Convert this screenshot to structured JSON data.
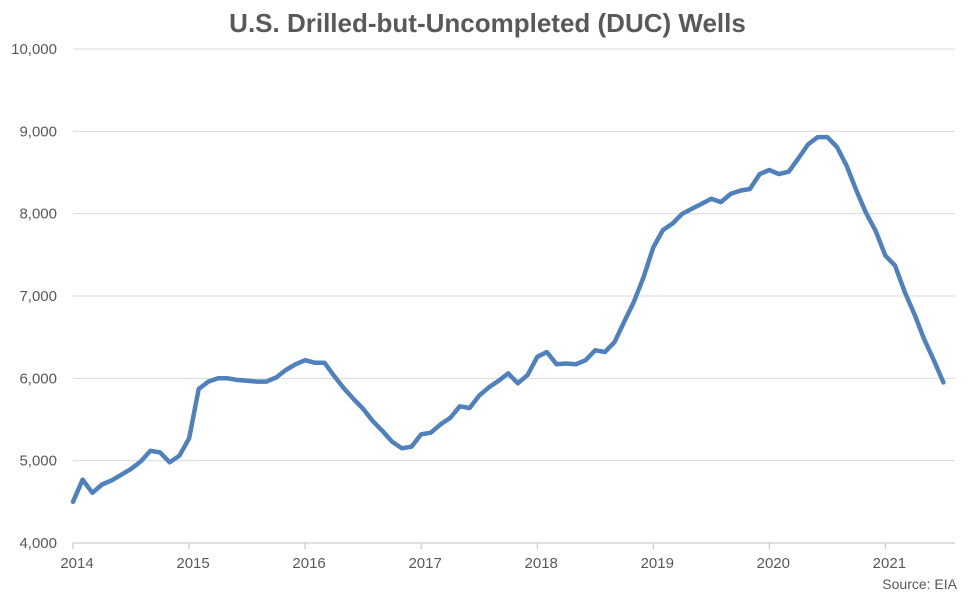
{
  "chart_data": {
    "type": "line",
    "title": "U.S. Drilled-but-Uncompleted (DUC) Wells",
    "source": "Source: EIA",
    "xlabel": "",
    "ylabel": "",
    "x_ticks": [
      "2014",
      "2015",
      "2016",
      "2017",
      "2018",
      "2019",
      "2020",
      "2021"
    ],
    "y_ticks": [
      "4,000",
      "5,000",
      "6,000",
      "7,000",
      "8,000",
      "9,000",
      "10,000"
    ],
    "ylim": [
      4000,
      10000
    ],
    "xlim": [
      2014.0,
      2021.6
    ],
    "grid": "horizontal",
    "line_color": "#4f81bd",
    "series": [
      {
        "x": [
          2014.0,
          2014.083,
          2014.167,
          2014.25,
          2014.333,
          2014.417,
          2014.5,
          2014.583,
          2014.667,
          2014.75,
          2014.833,
          2014.917,
          2015.0,
          2015.083,
          2015.167,
          2015.25,
          2015.333,
          2015.417,
          2015.5,
          2015.583,
          2015.667,
          2015.75,
          2015.833,
          2015.917,
          2016.0,
          2016.083,
          2016.167,
          2016.25,
          2016.333,
          2016.417,
          2016.5,
          2016.583,
          2016.667,
          2016.75,
          2016.833,
          2016.917,
          2017.0,
          2017.083,
          2017.167,
          2017.25,
          2017.333,
          2017.417,
          2017.5,
          2017.583,
          2017.667,
          2017.75,
          2017.833,
          2017.917,
          2018.0,
          2018.083,
          2018.167,
          2018.25,
          2018.333,
          2018.417,
          2018.5,
          2018.583,
          2018.667,
          2018.75,
          2018.833,
          2018.917,
          2019.0,
          2019.083,
          2019.167,
          2019.25,
          2019.333,
          2019.417,
          2019.5,
          2019.583,
          2019.667,
          2019.75,
          2019.833,
          2019.917,
          2020.0,
          2020.083,
          2020.167,
          2020.25,
          2020.333,
          2020.417,
          2020.5,
          2020.583,
          2020.667,
          2020.75,
          2020.833,
          2020.917,
          2021.0,
          2021.083,
          2021.167,
          2021.25,
          2021.333,
          2021.417,
          2021.5
        ],
        "values": [
          4500,
          4770,
          4610,
          4710,
          4760,
          4830,
          4900,
          4990,
          5120,
          5100,
          4980,
          5060,
          5270,
          5870,
          5960,
          6000,
          6000,
          5980,
          5970,
          5960,
          5960,
          6010,
          6100,
          6170,
          6220,
          6190,
          6190,
          6030,
          5880,
          5750,
          5630,
          5480,
          5360,
          5230,
          5150,
          5170,
          5320,
          5340,
          5440,
          5520,
          5660,
          5640,
          5790,
          5890,
          5970,
          6060,
          5940,
          6040,
          6260,
          6320,
          6170,
          6180,
          6170,
          6220,
          6340,
          6320,
          6440,
          6690,
          6930,
          7230,
          7590,
          7800,
          7880,
          8000,
          8060,
          8120,
          8180,
          8140,
          8240,
          8280,
          8300,
          8480,
          8530,
          8480,
          8510,
          8670,
          8840,
          8930,
          8930,
          8810,
          8580,
          8280,
          8010,
          7790,
          7490,
          7370,
          7050,
          6780,
          6480,
          6220,
          5950
        ]
      }
    ]
  }
}
